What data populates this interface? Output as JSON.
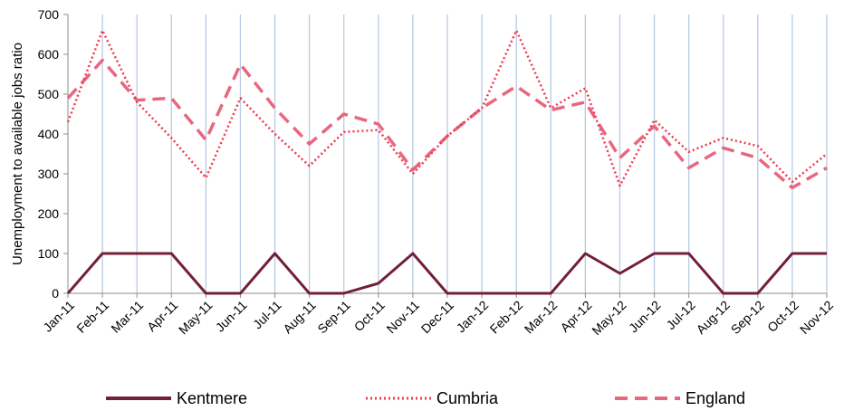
{
  "chart_data": {
    "type": "line",
    "title": "",
    "xlabel": "",
    "ylabel": "Unemployment to available jobs ratio",
    "ylim": [
      0,
      700
    ],
    "yticks": [
      0,
      100,
      200,
      300,
      400,
      500,
      600,
      700
    ],
    "grid": "vertical",
    "legend_position": "bottom",
    "categories": [
      "Jan-11",
      "Feb-11",
      "Mar-11",
      "Apr-11",
      "May-11",
      "Jun-11",
      "Jul-11",
      "Aug-11",
      "Sep-11",
      "Oct-11",
      "Nov-11",
      "Dec-11",
      "Jan-12",
      "Feb-12",
      "Mar-12",
      "Apr-12",
      "May-12",
      "Jun-12",
      "Jul-12",
      "Aug-12",
      "Sep-12",
      "Oct-12",
      "Nov-12"
    ],
    "series": [
      {
        "name": "Kentmere",
        "color": "#722036",
        "style": "solid",
        "values": [
          0,
          100,
          100,
          100,
          0,
          0,
          100,
          0,
          0,
          25,
          100,
          0,
          0,
          0,
          0,
          100,
          50,
          100,
          100,
          0,
          0,
          100,
          100
        ]
      },
      {
        "name": "Cumbria",
        "color": "#ee3a4e",
        "style": "dotted",
        "values": [
          430,
          660,
          480,
          390,
          290,
          490,
          400,
          320,
          405,
          410,
          300,
          395,
          465,
          660,
          465,
          515,
          270,
          435,
          355,
          390,
          370,
          280,
          350
        ]
      },
      {
        "name": "England",
        "color": "#e8677f",
        "style": "dashed",
        "values": [
          490,
          585,
          485,
          490,
          385,
          575,
          465,
          375,
          450,
          425,
          310,
          395,
          465,
          520,
          460,
          480,
          340,
          420,
          315,
          365,
          340,
          265,
          315
        ]
      }
    ]
  }
}
